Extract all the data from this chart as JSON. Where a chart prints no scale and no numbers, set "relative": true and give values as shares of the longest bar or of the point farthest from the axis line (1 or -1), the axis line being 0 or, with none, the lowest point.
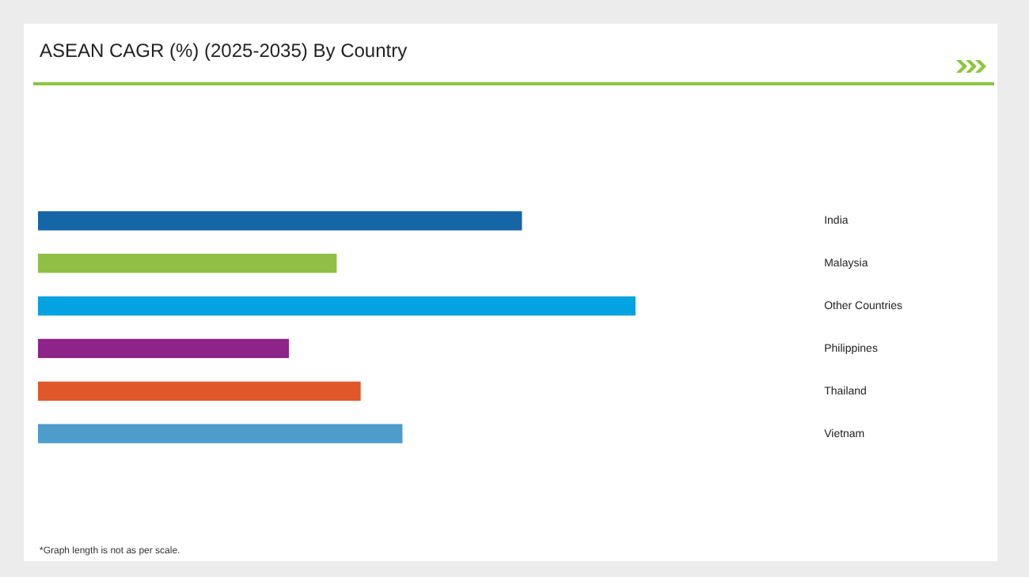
{
  "chart_data": {
    "type": "bar",
    "orientation": "horizontal",
    "relative": true,
    "title": "ASEAN CAGR (%) (2025-2035) By Country",
    "categories": [
      "India",
      "Malaysia",
      "Other Countries",
      "Philippines",
      "Thailand",
      "Vietnam"
    ],
    "values": [
      0.81,
      0.5,
      1,
      0.42,
      0.54,
      0.61
    ],
    "colors": [
      "#1565a7",
      "#8fbf45",
      "#03a2e0",
      "#8e2389",
      "#e0572a",
      "#4d9ccc"
    ],
    "grid": false,
    "legend": false,
    "annotations": [
      "*Graph length is not as per scale."
    ]
  }
}
